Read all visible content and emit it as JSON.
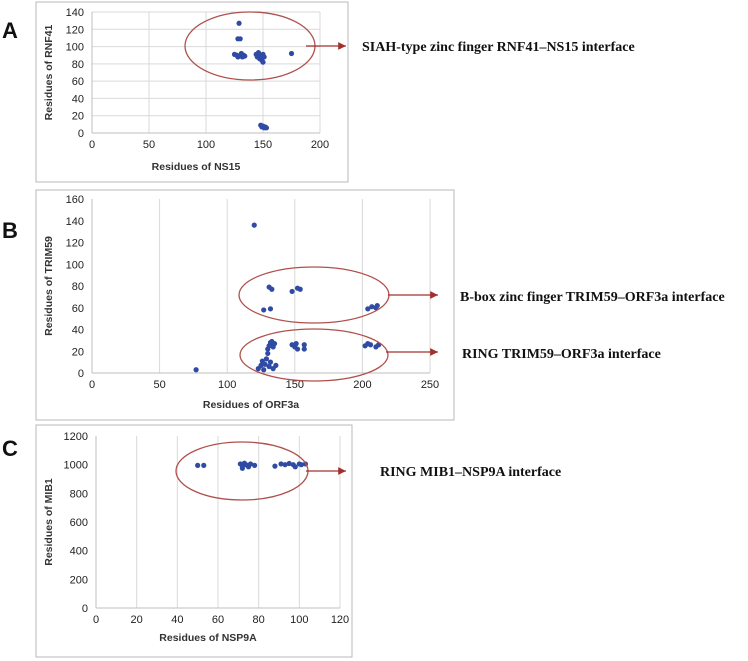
{
  "colors": {
    "point": "#2f4ba3",
    "grid": "#d9d9d9",
    "frame": "#b8b8b8",
    "ellipse": "#b0504c",
    "arrow": "#a0302c"
  },
  "chart_data": [
    {
      "type": "scatter",
      "panel": "A",
      "xlabel": "Residues of NS15",
      "ylabel": "Residues of RNF41",
      "xlim": [
        0,
        200
      ],
      "ylim": [
        0,
        140
      ],
      "xticks": [
        "0",
        "50",
        "100",
        "150",
        "200"
      ],
      "yticks": [
        "0",
        "20",
        "40",
        "60",
        "80",
        "100",
        "120",
        "140"
      ],
      "grid": true,
      "grid_axis": "both",
      "annotations": [
        "SIAH-type zinc finger RNF41–NS15 interface"
      ],
      "points": [
        [
          129,
          127
        ],
        [
          128,
          109
        ],
        [
          130,
          109
        ],
        [
          125,
          91
        ],
        [
          127,
          90
        ],
        [
          128,
          88
        ],
        [
          130,
          89
        ],
        [
          131,
          92
        ],
        [
          132,
          88
        ],
        [
          133,
          90
        ],
        [
          134,
          89
        ],
        [
          144,
          91
        ],
        [
          145,
          88
        ],
        [
          146,
          93
        ],
        [
          147,
          86
        ],
        [
          148,
          90
        ],
        [
          149,
          84
        ],
        [
          150,
          91
        ],
        [
          151,
          88
        ],
        [
          150,
          82
        ],
        [
          175,
          92
        ],
        [
          148,
          9
        ],
        [
          149,
          7
        ],
        [
          150,
          8
        ],
        [
          151,
          6
        ],
        [
          152,
          7
        ],
        [
          153,
          6
        ]
      ]
    },
    {
      "type": "scatter",
      "panel": "B",
      "xlabel": "Residues of ORF3a",
      "ylabel": "Residues of TRIM59",
      "xlim": [
        0,
        250
      ],
      "ylim": [
        0,
        160
      ],
      "xticks": [
        "0",
        "50",
        "100",
        "150",
        "200",
        "250"
      ],
      "yticks": [
        "0",
        "20",
        "40",
        "60",
        "80",
        "100",
        "120",
        "140",
        "160"
      ],
      "grid": true,
      "grid_axis": "x",
      "annotations": [
        "B-box zinc finger TRIM59–ORF3a interface",
        "RING TRIM59–ORF3a interface"
      ],
      "points": [
        [
          120,
          136
        ],
        [
          131,
          79
        ],
        [
          133,
          77
        ],
        [
          152,
          78
        ],
        [
          154,
          77
        ],
        [
          148,
          75
        ],
        [
          127,
          58
        ],
        [
          132,
          59
        ],
        [
          204,
          59
        ],
        [
          207,
          61
        ],
        [
          210,
          60
        ],
        [
          211,
          62
        ],
        [
          77,
          3
        ],
        [
          132,
          28
        ],
        [
          133,
          26
        ],
        [
          134,
          24
        ],
        [
          135,
          27
        ],
        [
          131,
          25
        ],
        [
          133,
          29
        ],
        [
          130,
          22
        ],
        [
          148,
          26
        ],
        [
          150,
          24
        ],
        [
          151,
          27
        ],
        [
          152,
          22
        ],
        [
          157,
          26
        ],
        [
          157,
          22
        ],
        [
          202,
          25
        ],
        [
          204,
          27
        ],
        [
          206,
          26
        ],
        [
          210,
          24
        ],
        [
          212,
          26
        ],
        [
          123,
          4
        ],
        [
          125,
          7
        ],
        [
          126,
          11
        ],
        [
          127,
          3
        ],
        [
          128,
          8
        ],
        [
          129,
          13
        ],
        [
          130,
          18
        ],
        [
          131,
          6
        ],
        [
          132,
          10
        ],
        [
          134,
          4
        ],
        [
          136,
          7
        ]
      ]
    },
    {
      "type": "scatter",
      "panel": "C",
      "xlabel": "Residues of NSP9A",
      "ylabel": "Residues of MIB1",
      "xlim": [
        0,
        120
      ],
      "ylim": [
        0,
        1200
      ],
      "xticks": [
        "0",
        "20",
        "40",
        "60",
        "80",
        "100",
        "120"
      ],
      "yticks": [
        "0",
        "200",
        "400",
        "600",
        "800",
        "1000",
        "1200"
      ],
      "grid": true,
      "grid_axis": "x",
      "annotations": [
        "RING MIB1–NSP9A interface"
      ],
      "points": [
        [
          50,
          995
        ],
        [
          53,
          995
        ],
        [
          71,
          1005
        ],
        [
          72,
          990
        ],
        [
          73,
          1010
        ],
        [
          74,
          998
        ],
        [
          75,
          985
        ],
        [
          76,
          1005
        ],
        [
          72,
          975
        ],
        [
          78,
          995
        ],
        [
          88,
          990
        ],
        [
          91,
          1005
        ],
        [
          93,
          1000
        ],
        [
          95,
          1008
        ],
        [
          97,
          1000
        ],
        [
          98,
          985
        ],
        [
          100,
          1005
        ],
        [
          101,
          1000
        ],
        [
          103,
          1005
        ]
      ]
    }
  ]
}
